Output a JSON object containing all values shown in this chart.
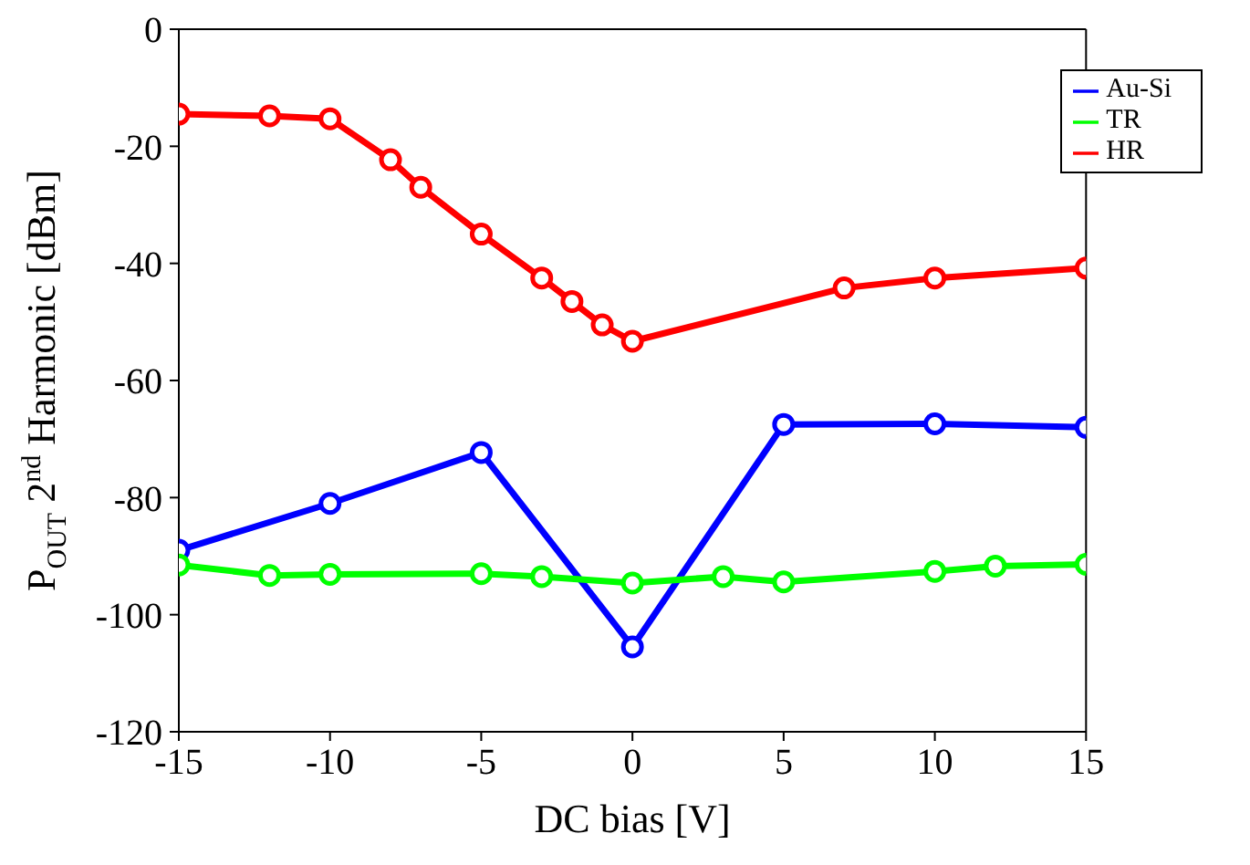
{
  "chart_data": {
    "type": "line",
    "xlabel": "DC bias [V]",
    "ylabel": "P$_{OUT}$ 2$^{nd}$ Harmonic [dBm]",
    "xlim": [
      -15,
      15
    ],
    "xticks": [
      -15,
      -10,
      -5,
      0,
      5,
      10,
      15
    ],
    "ylim": [
      -120,
      0
    ],
    "yticks": [
      -120,
      -100,
      -80,
      -60,
      -40,
      -20,
      0
    ],
    "grid": false,
    "legend": "top right",
    "marker": "circle",
    "line_style": "solid",
    "series": [
      {
        "name": "Au-Si",
        "color": "#0000ff",
        "x": [
          -15,
          -10,
          -5,
          0,
          5,
          10,
          15
        ],
        "values": [
          -89,
          -81,
          -72.3,
          -105.5,
          -67.5,
          -67.4,
          -68
        ]
      },
      {
        "name": "TR",
        "color": "#00ff00",
        "x": [
          -15,
          -12,
          -10,
          -5,
          -3,
          0,
          3,
          5,
          10,
          12,
          15
        ],
        "values": [
          -91.5,
          -93.3,
          -93.1,
          -93,
          -93.5,
          -94.6,
          -93.5,
          -94.4,
          -92.6,
          -91.7,
          -91.4
        ]
      },
      {
        "name": "HR",
        "color": "#ff0000",
        "x": [
          -15,
          -12,
          -10,
          -8,
          -7,
          -5,
          -3,
          -2,
          -1,
          0,
          7,
          10,
          15
        ],
        "values": [
          -14.5,
          -14.8,
          -15.3,
          -22.3,
          -27,
          -35,
          -42.5,
          -46.5,
          -50.5,
          -53.3,
          -44.2,
          -42.5,
          -40.8
        ]
      }
    ]
  }
}
